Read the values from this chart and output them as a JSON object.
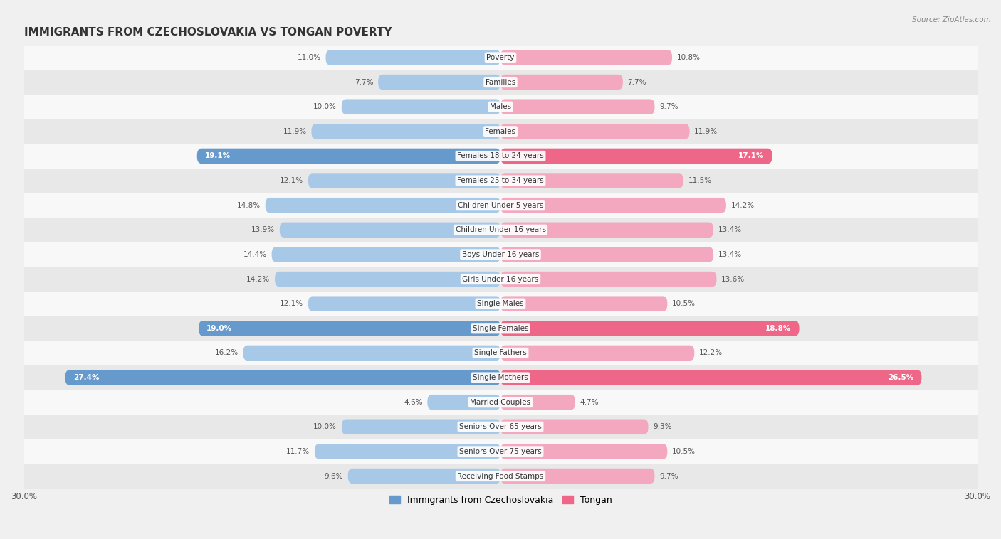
{
  "title": "IMMIGRANTS FROM CZECHOSLOVAKIA VS TONGAN POVERTY",
  "source": "Source: ZipAtlas.com",
  "categories": [
    "Poverty",
    "Families",
    "Males",
    "Females",
    "Females 18 to 24 years",
    "Females 25 to 34 years",
    "Children Under 5 years",
    "Children Under 16 years",
    "Boys Under 16 years",
    "Girls Under 16 years",
    "Single Males",
    "Single Females",
    "Single Fathers",
    "Single Mothers",
    "Married Couples",
    "Seniors Over 65 years",
    "Seniors Over 75 years",
    "Receiving Food Stamps"
  ],
  "left_values": [
    11.0,
    7.7,
    10.0,
    11.9,
    19.1,
    12.1,
    14.8,
    13.9,
    14.4,
    14.2,
    12.1,
    19.0,
    16.2,
    27.4,
    4.6,
    10.0,
    11.7,
    9.6
  ],
  "right_values": [
    10.8,
    7.7,
    9.7,
    11.9,
    17.1,
    11.5,
    14.2,
    13.4,
    13.4,
    13.6,
    10.5,
    18.8,
    12.2,
    26.5,
    4.7,
    9.3,
    10.5,
    9.7
  ],
  "left_color_normal": "#a8c8e8",
  "right_color_normal": "#f4a8c0",
  "left_color_highlight": "#6699cc",
  "right_color_highlight": "#ee6688",
  "highlight_rows": [
    4,
    11,
    13
  ],
  "axis_max": 30.0,
  "legend_left": "Immigrants from Czechoslovakia",
  "legend_right": "Tongan",
  "background_color": "#f0f0f0",
  "row_bg_light": "#f8f8f8",
  "row_bg_dark": "#e8e8e8",
  "title_fontsize": 11,
  "label_fontsize": 7.5,
  "value_fontsize": 7.5,
  "bar_height": 0.62
}
